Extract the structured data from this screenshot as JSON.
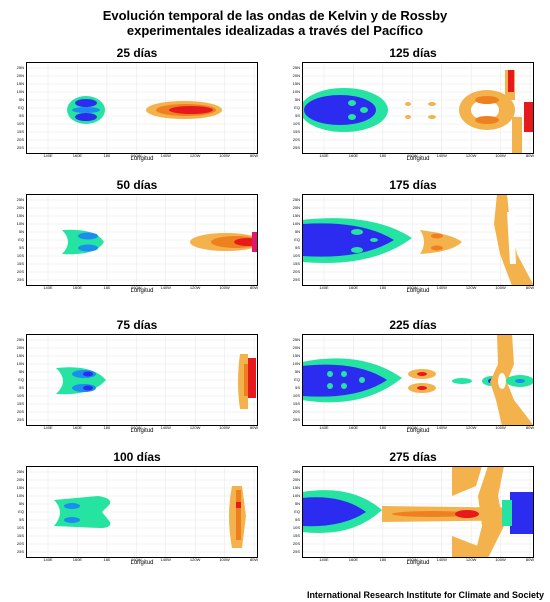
{
  "title_line1": "Evolución temporal de las ondas de Kelvin y de Rossby",
  "title_line2": "experimentales idealizadas a través del Pacífico",
  "footer": "International Research Institute for Climate and Society",
  "xlabel": "Longitud",
  "x_ticks": [
    "140E",
    "160E",
    "180",
    "160W",
    "140W",
    "120W",
    "100W",
    "80W"
  ],
  "y_ticks": [
    "25N",
    "20N",
    "15N",
    "10N",
    "5N",
    "EQ",
    "5S",
    "10S",
    "15S",
    "20S",
    "25S"
  ],
  "colors": {
    "dark_blue": "#2c2cf0",
    "blue": "#1c8cf0",
    "green": "#25e3a0",
    "light_orange": "#f4b24c",
    "orange": "#ef8020",
    "red": "#e8191c",
    "magenta": "#e0186a"
  },
  "panels": [
    {
      "label": "25 días"
    },
    {
      "label": "125 días"
    },
    {
      "label": "50 días"
    },
    {
      "label": "175 días"
    },
    {
      "label": "75 días"
    },
    {
      "label": "225 días"
    },
    {
      "label": "100 días"
    },
    {
      "label": "275 días"
    }
  ]
}
